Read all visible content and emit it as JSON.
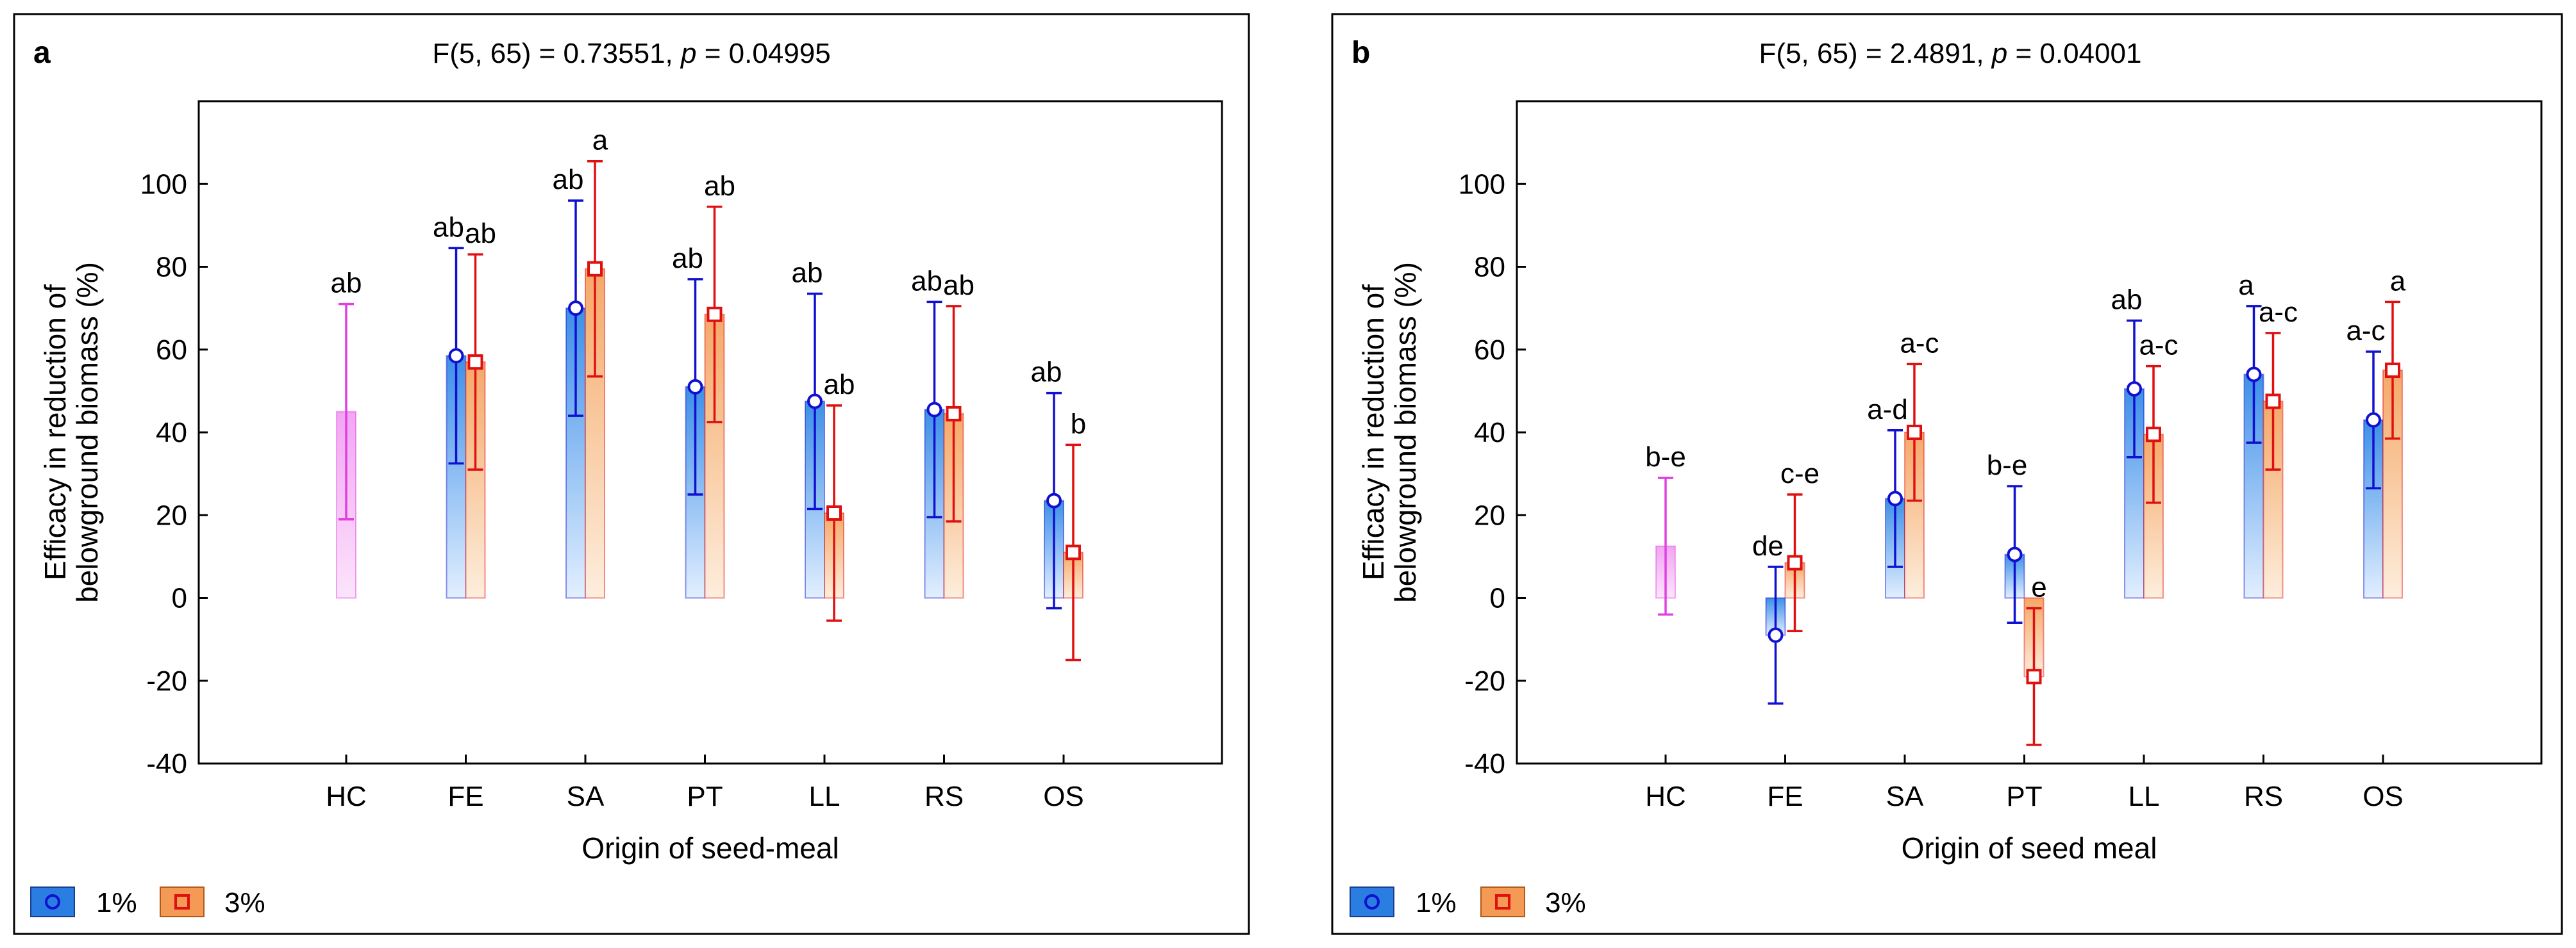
{
  "colors": {
    "hc_stroke": "#e040e0",
    "hc_fill_top": "#f2a6f2",
    "hc_fill_bottom": "#fbe4fb",
    "blue_stroke": "#1010d0",
    "blue_fill_top": "#3d8fe8",
    "blue_fill_bottom": "#e2efff",
    "red_stroke": "#e01010",
    "red_fill_top": "#f5a868",
    "red_fill_bottom": "#fdeedd",
    "legend_blue": "#2a7de1",
    "legend_orange": "#f49a55"
  },
  "chart_data": [
    {
      "type": "bar",
      "panel_label": "a",
      "title_prefix": "F(5, 65) = 0.73551, ",
      "title_p": "p",
      "title_suffix": " = 0.04995",
      "xlabel": "Origin of seed-meal",
      "ylabel_line1": "Efficacy in reduction of",
      "ylabel_line2": "belowground biomass (%)",
      "ylim": [
        -40,
        120
      ],
      "yticks": [
        -40,
        -20,
        0,
        20,
        40,
        60,
        80,
        100
      ],
      "categories": [
        "HC",
        "FE",
        "SA",
        "PT",
        "LL",
        "RS",
        "OS"
      ],
      "hc": {
        "value": 45,
        "lower": 19,
        "upper": 71,
        "label": "ab"
      },
      "series": [
        {
          "name": "1%",
          "values": [
            null,
            58.5,
            70,
            51,
            47.5,
            45.5,
            23.5
          ],
          "lower": [
            null,
            32.5,
            44,
            25,
            21.5,
            19.5,
            -2.5
          ],
          "upper": [
            null,
            84.5,
            96,
            77,
            73.5,
            71.5,
            49.5
          ],
          "labels": [
            null,
            "ab",
            "ab",
            "ab",
            "ab",
            "ab",
            "ab"
          ]
        },
        {
          "name": "3%",
          "values": [
            null,
            57,
            79.5,
            68.5,
            20.5,
            44.5,
            11
          ],
          "lower": [
            null,
            31,
            53.5,
            42.5,
            -5.5,
            18.5,
            -15
          ],
          "upper": [
            null,
            83,
            105.5,
            94.5,
            46.5,
            70.5,
            37
          ],
          "labels": [
            null,
            "ab",
            "a",
            "ab",
            "ab",
            "ab",
            "b"
          ]
        }
      ],
      "legend": [
        "1%",
        "3%"
      ]
    },
    {
      "type": "bar",
      "panel_label": "b",
      "title_prefix": "F(5, 65) = 2.4891, ",
      "title_p": "p",
      "title_suffix": " = 0.04001",
      "xlabel": "Origin of seed meal",
      "ylabel_line1": "Efficacy in reduction of",
      "ylabel_line2": "belowground biomass (%)",
      "ylim": [
        -40,
        120
      ],
      "yticks": [
        -40,
        -20,
        0,
        20,
        40,
        60,
        80,
        100
      ],
      "categories": [
        "HC",
        "FE",
        "SA",
        "PT",
        "LL",
        "RS",
        "OS"
      ],
      "hc": {
        "value": 12.5,
        "lower": -4,
        "upper": 29,
        "label": "b-e"
      },
      "series": [
        {
          "name": "1%",
          "values": [
            null,
            -9,
            24,
            10.5,
            50.5,
            54,
            43
          ],
          "lower": [
            null,
            -25.5,
            7.5,
            -6,
            34,
            37.5,
            26.5
          ],
          "upper": [
            null,
            7.5,
            40.5,
            27,
            67,
            70.5,
            59.5
          ],
          "labels": [
            null,
            "de",
            "a-d",
            "b-e",
            "ab",
            "a",
            "a-c"
          ]
        },
        {
          "name": "3%",
          "values": [
            null,
            8.5,
            40,
            -19,
            39.5,
            47.5,
            55
          ],
          "lower": [
            null,
            -8,
            23.5,
            -35.5,
            23,
            31,
            38.5
          ],
          "upper": [
            null,
            25,
            56.5,
            -2.5,
            56,
            64,
            71.5
          ],
          "labels": [
            null,
            "c-e",
            "a-c",
            "e",
            "a-c",
            "a-c",
            "a"
          ]
        }
      ],
      "legend": [
        "1%",
        "3%"
      ]
    }
  ]
}
